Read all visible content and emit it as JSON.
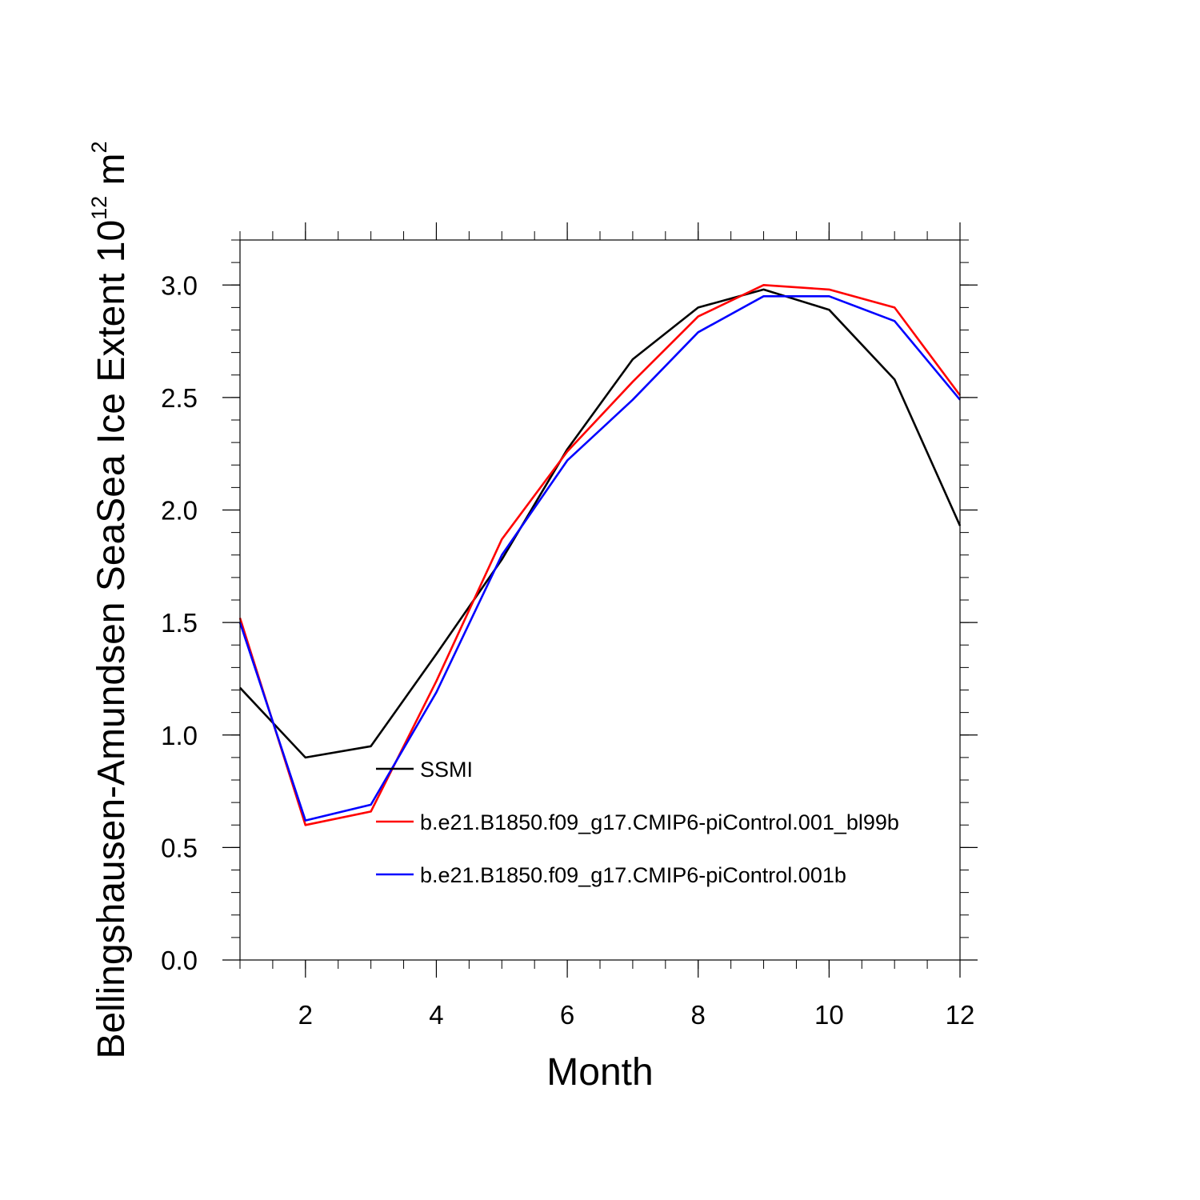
{
  "chart_data": {
    "type": "line",
    "xlabel": "Month",
    "ylabel": "Bellingshausen-Amundsen SeaSea Ice Extent 10",
    "ylabel_superscript": "12",
    "ylabel_unit": " m",
    "ylabel_unit_superscript": "2",
    "xlim": [
      1,
      12
    ],
    "ylim": [
      0,
      3.2
    ],
    "xticks": [
      2,
      4,
      6,
      8,
      10,
      12
    ],
    "yticks": [
      0.0,
      0.5,
      1.0,
      1.5,
      2.0,
      2.5,
      3.0
    ],
    "ytick_labels": [
      "0.0",
      "0.5",
      "1.0",
      "1.5",
      "2.0",
      "2.5",
      "3.0"
    ],
    "legend_position": "center-bottom",
    "x": [
      1,
      2,
      3,
      4,
      5,
      6,
      7,
      8,
      9,
      10,
      11,
      12
    ],
    "series": [
      {
        "name": "SSMI",
        "color": "#000000",
        "values": [
          1.21,
          0.9,
          0.95,
          1.36,
          1.78,
          2.27,
          2.67,
          2.9,
          2.98,
          2.89,
          2.58,
          1.93
        ]
      },
      {
        "name": "b.e21.B1850.f09_g17.CMIP6-piControl.001_bl99b",
        "color": "#ff0000",
        "values": [
          1.52,
          0.6,
          0.66,
          1.24,
          1.87,
          2.26,
          2.57,
          2.86,
          3.0,
          2.98,
          2.9,
          2.51
        ]
      },
      {
        "name": "b.e21.B1850.f09_g17.CMIP6-piControl.001b",
        "color": "#0000ff",
        "values": [
          1.5,
          0.62,
          0.69,
          1.19,
          1.8,
          2.22,
          2.49,
          2.79,
          2.95,
          2.95,
          2.84,
          2.49
        ]
      }
    ]
  }
}
